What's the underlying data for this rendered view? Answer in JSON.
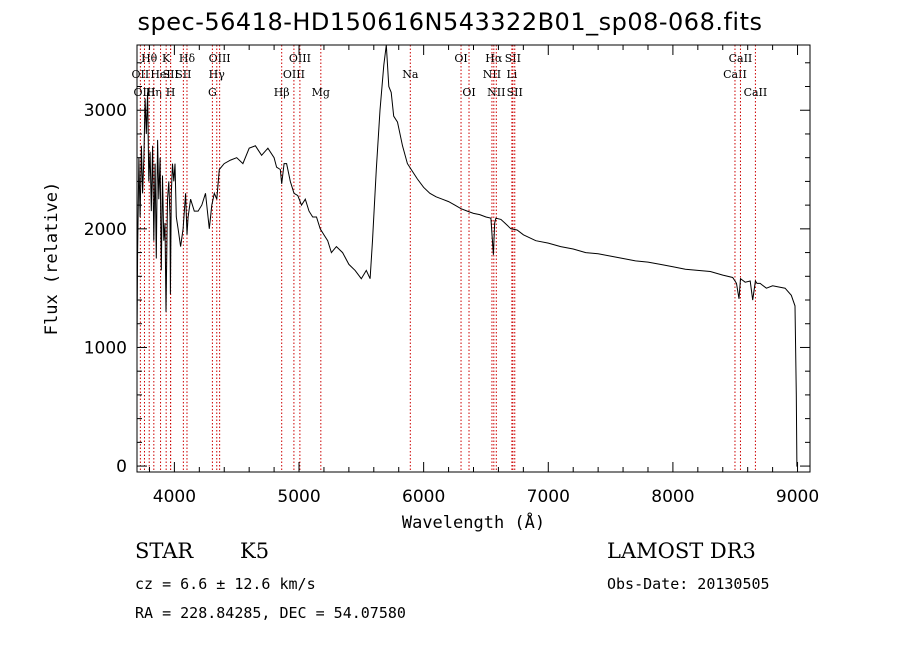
{
  "chart_data": {
    "type": "line",
    "title": "spec-56418-HD150616N543322B01_sp08-068.fits",
    "xlabel": "Wavelength (Å)",
    "ylabel": "Flux (relative)",
    "xlim": [
      3700,
      9100
    ],
    "ylim": [
      -50,
      3550
    ],
    "x_ticks": [
      4000,
      5000,
      6000,
      7000,
      8000,
      9000
    ],
    "y_ticks": [
      0,
      1000,
      2000,
      3000
    ],
    "x_tick_labels": [
      "4000",
      "5000",
      "6000",
      "7000",
      "8000",
      "9000"
    ],
    "y_tick_labels": [
      "0",
      "1000",
      "2000",
      "3000"
    ],
    "series": [
      {
        "name": "flux",
        "x": [
          3700,
          3705,
          3715,
          3725,
          3735,
          3745,
          3755,
          3765,
          3775,
          3785,
          3795,
          3805,
          3815,
          3825,
          3835,
          3845,
          3855,
          3865,
          3875,
          3885,
          3895,
          3905,
          3915,
          3925,
          3933,
          3945,
          3955,
          3965,
          3968,
          3975,
          3985,
          3995,
          4005,
          4015,
          4030,
          4050,
          4070,
          4090,
          4101,
          4110,
          4130,
          4160,
          4190,
          4220,
          4250,
          4280,
          4300,
          4320,
          4340,
          4360,
          4400,
          4450,
          4500,
          4550,
          4600,
          4650,
          4700,
          4750,
          4800,
          4820,
          4850,
          4861,
          4880,
          4900,
          4930,
          4960,
          4990,
          5020,
          5050,
          5080,
          5110,
          5140,
          5170,
          5200,
          5230,
          5260,
          5300,
          5350,
          5400,
          5450,
          5500,
          5540,
          5570,
          5590,
          5620,
          5650,
          5680,
          5700,
          5720,
          5740,
          5760,
          5790,
          5830,
          5870,
          5900,
          5950,
          6000,
          6050,
          6100,
          6150,
          6200,
          6250,
          6300,
          6350,
          6400,
          6450,
          6500,
          6540,
          6560,
          6563,
          6570,
          6580,
          6620,
          6650,
          6700,
          6750,
          6800,
          6900,
          7000,
          7100,
          7200,
          7300,
          7400,
          7500,
          7600,
          7700,
          7800,
          7900,
          8000,
          8100,
          8200,
          8300,
          8400,
          8480,
          8498,
          8510,
          8530,
          8542,
          8555,
          8580,
          8620,
          8640,
          8662,
          8675,
          8700,
          8750,
          8800,
          8850,
          8900,
          8950,
          8980,
          8990,
          8995,
          9000
        ],
        "y": [
          1000,
          1800,
          2600,
          2100,
          2700,
          2300,
          2600,
          3100,
          2800,
          3150,
          2400,
          2650,
          2150,
          2700,
          1900,
          2550,
          1750,
          2750,
          2250,
          2600,
          1650,
          2450,
          1900,
          2050,
          1300,
          2250,
          2400,
          2100,
          1450,
          2300,
          2550,
          2400,
          2550,
          2100,
          2000,
          1850,
          2000,
          2300,
          1950,
          2100,
          2250,
          2150,
          2150,
          2200,
          2300,
          2000,
          2200,
          2300,
          2250,
          2500,
          2550,
          2580,
          2600,
          2550,
          2680,
          2700,
          2620,
          2680,
          2600,
          2520,
          2500,
          2380,
          2550,
          2550,
          2400,
          2300,
          2280,
          2200,
          2250,
          2150,
          2100,
          2100,
          2000,
          1950,
          1900,
          1800,
          1850,
          1800,
          1700,
          1650,
          1580,
          1650,
          1580,
          1900,
          2500,
          3000,
          3380,
          3600,
          3200,
          3150,
          2950,
          2900,
          2700,
          2550,
          2500,
          2420,
          2350,
          2300,
          2270,
          2250,
          2230,
          2200,
          2170,
          2150,
          2130,
          2120,
          2100,
          2090,
          1780,
          1870,
          2050,
          2090,
          2080,
          2050,
          2000,
          1990,
          1950,
          1900,
          1880,
          1850,
          1830,
          1800,
          1790,
          1770,
          1750,
          1730,
          1720,
          1700,
          1680,
          1660,
          1650,
          1640,
          1610,
          1590,
          1560,
          1540,
          1410,
          1580,
          1570,
          1550,
          1560,
          1400,
          1560,
          1540,
          1540,
          1500,
          1520,
          1510,
          1500,
          1440,
          1350,
          600,
          0,
          0
        ]
      }
    ],
    "line_markers": [
      {
        "label": "Hθ",
        "x": 3798,
        "row": 1
      },
      {
        "label": "OII",
        "x": 3727,
        "row": 2
      },
      {
        "label": "OIII",
        "x": 3760,
        "row": 3
      },
      {
        "label": "Hη",
        "x": 3835,
        "row": 3
      },
      {
        "label": "HeI",
        "x": 3889,
        "row": 2
      },
      {
        "label": "K",
        "x": 3934,
        "row": 1
      },
      {
        "label": "SII",
        "x": 3970,
        "row": 2
      },
      {
        "label": "H",
        "x": 3969,
        "row": 3
      },
      {
        "label": "Hδ",
        "x": 4101,
        "row": 1
      },
      {
        "label": "SII",
        "x": 4072,
        "row": 2
      },
      {
        "label": "OIII",
        "x": 4363,
        "row": 1
      },
      {
        "label": "Hγ",
        "x": 4340,
        "row": 2
      },
      {
        "label": "G",
        "x": 4305,
        "row": 3
      },
      {
        "label": "Hβ",
        "x": 4861,
        "row": 3
      },
      {
        "label": "OIII",
        "x": 4959,
        "row": 2
      },
      {
        "label": "OIII",
        "x": 5007,
        "row": 1
      },
      {
        "label": "Mg",
        "x": 5175,
        "row": 3
      },
      {
        "label": "Na",
        "x": 5893,
        "row": 2
      },
      {
        "label": "OI",
        "x": 6300,
        "row": 1
      },
      {
        "label": "OI",
        "x": 6364,
        "row": 3
      },
      {
        "label": "NII",
        "x": 6548,
        "row": 2
      },
      {
        "label": "Hα",
        "x": 6563,
        "row": 1
      },
      {
        "label": "NII",
        "x": 6583,
        "row": 3
      },
      {
        "label": "SII",
        "x": 6716,
        "row": 1
      },
      {
        "label": "Li",
        "x": 6708,
        "row": 2
      },
      {
        "label": "SII",
        "x": 6731,
        "row": 3
      },
      {
        "label": "CaII",
        "x": 8498,
        "row": 2
      },
      {
        "label": "CaII",
        "x": 8542,
        "row": 1
      },
      {
        "label": "CaII",
        "x": 8662,
        "row": 3
      }
    ]
  },
  "info": {
    "object_class": "STAR",
    "subclass": "K5",
    "redshift_text": "cz = 6.6 ± 12.6 km/s",
    "coords_text": "RA = 228.84285, DEC =  54.07580",
    "survey": "LAMOST DR3",
    "obs_date_text": "Obs-Date: 20130505"
  },
  "colors": {
    "line": "#000000",
    "marker": "#cc0000",
    "background": "#ffffff"
  }
}
